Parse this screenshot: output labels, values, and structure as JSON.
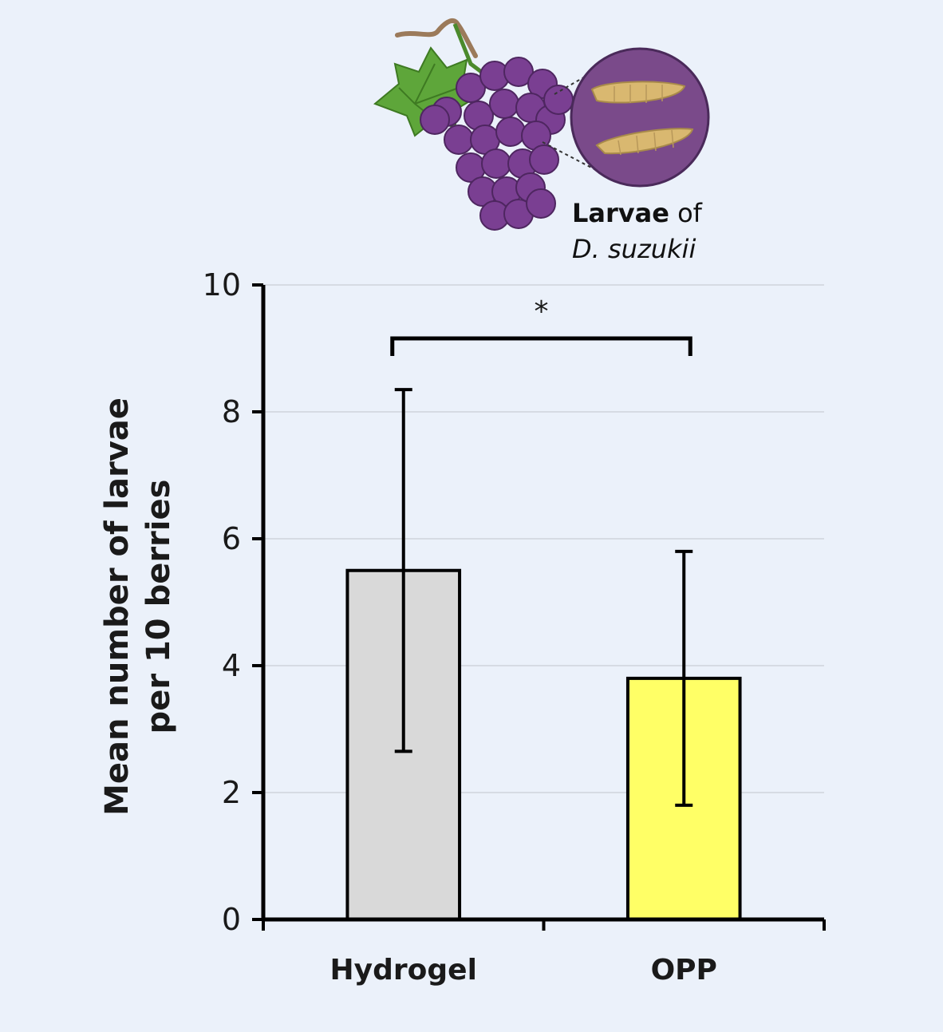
{
  "illustration": {
    "label_bold": "Larvae",
    "label_regular": " of",
    "label_species": "D. suzukii",
    "grape_color": "#7a3f92",
    "leaf_color": "#5ea63a",
    "larva_color": "#d9b870"
  },
  "chart_data": {
    "type": "bar",
    "categories": [
      "Hydrogel",
      "OPP"
    ],
    "values": [
      5.5,
      3.8
    ],
    "error_low": [
      2.65,
      1.8
    ],
    "error_high": [
      8.35,
      5.8
    ],
    "bar_colors": [
      "#d9d9d9",
      "#ffff66"
    ],
    "title": "",
    "xlabel": "",
    "ylabel_line1": "Mean number of larvae",
    "ylabel_line2": "per 10 berries",
    "ylim": [
      0,
      10
    ],
    "yticks": [
      "0",
      "2",
      "4",
      "6",
      "8",
      "10"
    ],
    "grid": true,
    "significance": {
      "between": [
        "Hydrogel",
        "OPP"
      ],
      "marker": "*"
    }
  }
}
